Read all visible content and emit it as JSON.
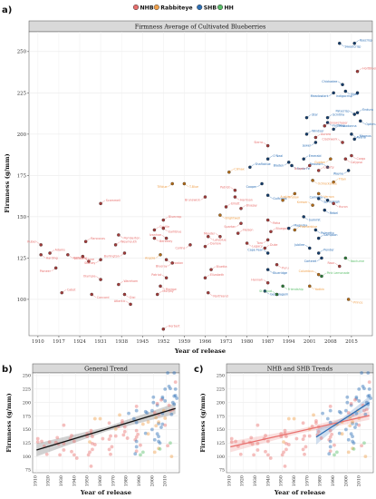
{
  "legend": {
    "entries": [
      {
        "name": "NHB",
        "color": "#e8706e"
      },
      {
        "name": "Rabbiteye",
        "color": "#f0a04b"
      },
      {
        "name": "SHB",
        "color": "#2d6fb5"
      },
      {
        "name": "HH",
        "color": "#5bbf6a"
      }
    ]
  },
  "panels": {
    "a": {
      "letter": "a)",
      "title": "Firmness Average of Cultivated Blueberries",
      "xlabel": "Year of release",
      "ylabel": "Firmness (g/mm)"
    },
    "b": {
      "letter": "b)",
      "title": "General Trend",
      "xlabel": "Year of release",
      "ylabel": "Firmness (g/mm)"
    },
    "c": {
      "letter": "c)",
      "title": "NHB and SHB Trends",
      "xlabel": "Year of release",
      "ylabel": "Firmness (g/mm)"
    }
  },
  "chart_data": [
    {
      "type": "scatter",
      "title": "Firmness Average of Cultivated Blueberries",
      "xlabel": "Year of release",
      "ylabel": "Firmness (g/mm)",
      "xlim": [
        1907,
        2022
      ],
      "ylim": [
        78,
        262
      ],
      "xticks": [
        1910,
        1917,
        1924,
        1931,
        1938,
        1945,
        1952,
        1959,
        1966,
        1973,
        1980,
        1987,
        1994,
        2001,
        2008,
        2015
      ],
      "yticks": [
        100,
        125,
        150,
        175,
        200,
        225,
        250
      ],
      "legend_position": "top",
      "points": [
        {
          "label": "Rubel",
          "x": 1911,
          "y": 133,
          "group": "NHB"
        },
        {
          "label": "Harding",
          "x": 1911,
          "y": 127,
          "group": "NHB"
        },
        {
          "label": "Adams",
          "x": 1914,
          "y": 128,
          "group": "NHB"
        },
        {
          "label": "Pioneer",
          "x": 1916,
          "y": 119,
          "group": "NHB"
        },
        {
          "label": "Cabot",
          "x": 1918,
          "y": 104,
          "group": "NHB"
        },
        {
          "label": "Katharine",
          "x": 1920,
          "y": 127,
          "group": "NHB"
        },
        {
          "label": "Jersey",
          "x": 1927,
          "y": 123,
          "group": "NHB"
        },
        {
          "label": "June",
          "x": 1925,
          "y": 126,
          "group": "NHB"
        },
        {
          "label": "Rancocas",
          "x": 1926,
          "y": 135,
          "group": "NHB"
        },
        {
          "label": "Stanley",
          "x": 1931,
          "y": 124,
          "group": "NHB"
        },
        {
          "label": "Scammell",
          "x": 1931,
          "y": 158,
          "group": "NHB"
        },
        {
          "label": "Concord",
          "x": 1928,
          "y": 103,
          "group": "NHB"
        },
        {
          "label": "Olympia",
          "x": 1931,
          "y": 112,
          "group": "NHB"
        },
        {
          "label": "Pemberton",
          "x": 1937,
          "y": 139,
          "group": "NHB"
        },
        {
          "label": "Weymouth",
          "x": 1936,
          "y": 133,
          "group": "NHB"
        },
        {
          "label": "Burlington",
          "x": 1939,
          "y": 128,
          "group": "NHB"
        },
        {
          "label": "Wareham",
          "x": 1937,
          "y": 109,
          "group": "NHB"
        },
        {
          "label": "Dixi",
          "x": 1939,
          "y": 103,
          "group": "NHB"
        },
        {
          "label": "Atlantic",
          "x": 1941,
          "y": 97,
          "group": "NHB"
        },
        {
          "label": "Berkeley",
          "x": 1949,
          "y": 137,
          "group": "NHB"
        },
        {
          "label": "Coville",
          "x": 1949,
          "y": 142,
          "group": "NHB"
        },
        {
          "label": "Angola",
          "x": 1951,
          "y": 127,
          "group": "Rabbiteye"
        },
        {
          "label": "Bluecrop",
          "x": 1952,
          "y": 148,
          "group": "NHB"
        },
        {
          "label": "Earliblue",
          "x": 1952,
          "y": 143,
          "group": "NHB"
        },
        {
          "label": "Ivanhoe",
          "x": 1953,
          "y": 137,
          "group": "NHB"
        },
        {
          "label": "Croatan",
          "x": 1953,
          "y": 124,
          "group": "NHB"
        },
        {
          "label": "Herbert",
          "x": 1952,
          "y": 82,
          "group": "NHB"
        },
        {
          "label": "Blueray",
          "x": 1955,
          "y": 122,
          "group": "NHB"
        },
        {
          "label": "Murphy",
          "x": 1950,
          "y": 103,
          "group": "NHB"
        },
        {
          "label": "Morrow",
          "x": 1951,
          "y": 108,
          "group": "NHB"
        },
        {
          "label": "Patriot",
          "x": 1953,
          "y": 113,
          "group": "NHB"
        },
        {
          "label": "T-Blue",
          "x": 1959,
          "y": 170,
          "group": "Rabbiteye"
        },
        {
          "label": "Bluetta",
          "x": 1968,
          "y": 118,
          "group": "NHB"
        },
        {
          "label": "Collins",
          "x": 1961,
          "y": 133,
          "group": "NHB"
        },
        {
          "label": "Elizabeth",
          "x": 1966,
          "y": 113,
          "group": "NHB"
        },
        {
          "label": "Northland",
          "x": 1967,
          "y": 104,
          "group": "NHB"
        },
        {
          "label": "Meader",
          "x": 1971,
          "y": 138,
          "group": "NHB"
        },
        {
          "label": "Lateblue",
          "x": 1967,
          "y": 138,
          "group": "NHB"
        },
        {
          "label": "Darrow",
          "x": 1966,
          "y": 132,
          "group": "NHB"
        },
        {
          "label": "Brunswick",
          "x": 1966,
          "y": 162,
          "group": "NHB"
        },
        {
          "label": "Elliott",
          "x": 1973,
          "y": 156,
          "group": "NHB"
        },
        {
          "label": "Brightwell",
          "x": 1971,
          "y": 151,
          "group": "Rabbiteye"
        },
        {
          "label": "Patriot",
          "x": 1976,
          "y": 166,
          "group": "NHB"
        },
        {
          "label": "Harrison",
          "x": 1976,
          "y": 162,
          "group": "NHB"
        },
        {
          "label": "Bluejay",
          "x": 1978,
          "y": 155,
          "group": "NHB"
        },
        {
          "label": "Spartan",
          "x": 1978,
          "y": 146,
          "group": "NHB"
        },
        {
          "label": "Nelson",
          "x": 1977,
          "y": 140,
          "group": "NHB"
        },
        {
          "label": "Legacy",
          "x": 1980,
          "y": 134,
          "group": "NHB"
        },
        {
          "label": "Sierra",
          "x": 1987,
          "y": 193,
          "group": "NHB"
        },
        {
          "label": "Reka",
          "x": 1987,
          "y": 148,
          "group": "NHB"
        },
        {
          "label": "Bluegold",
          "x": 1988,
          "y": 141,
          "group": "NHB"
        },
        {
          "label": "Toro",
          "x": 1987,
          "y": 136,
          "group": "NHB"
        },
        {
          "label": "Duke",
          "x": 1986,
          "y": 131,
          "group": "NHB"
        },
        {
          "label": "Puru",
          "x": 1990,
          "y": 121,
          "group": "NHB"
        },
        {
          "label": "Hannah",
          "x": 1987,
          "y": 110,
          "group": "NHB"
        },
        {
          "label": "Georgiagem",
          "x": 1986,
          "y": 105,
          "group": "SHB"
        },
        {
          "label": "Shaflaklue",
          "x": 1981,
          "y": 180,
          "group": "SHB"
        },
        {
          "label": "Cooper",
          "x": 1985,
          "y": 170,
          "group": "SHB"
        },
        {
          "label": "O'Neal",
          "x": 1987,
          "y": 185,
          "group": "SHB"
        },
        {
          "label": "Blueridge",
          "x": 1987,
          "y": 118,
          "group": "SHB"
        },
        {
          "label": "Cape Fear",
          "x": 1987,
          "y": 128,
          "group": "SHB"
        },
        {
          "label": "Gulfcoast",
          "x": 1987,
          "y": 163,
          "group": "SHB"
        },
        {
          "label": "Magnolia",
          "x": 1994,
          "y": 143,
          "group": "SHB"
        },
        {
          "label": "Bladen",
          "x": 1994,
          "y": 183,
          "group": "SHB"
        },
        {
          "label": "Emerald",
          "x": 1999,
          "y": 185,
          "group": "SHB"
        },
        {
          "label": "Santa Fe",
          "x": 1995,
          "y": 181,
          "group": "SHB"
        },
        {
          "label": "Jubilee",
          "x": 2001,
          "y": 131,
          "group": "SHB"
        },
        {
          "label": "Summit",
          "x": 1999,
          "y": 150,
          "group": "SHB"
        },
        {
          "label": "Star",
          "x": 2000,
          "y": 210,
          "group": "SHB"
        },
        {
          "label": "Jewel",
          "x": 2003,
          "y": 195,
          "group": "SHB"
        },
        {
          "label": "Windsor",
          "x": 2000,
          "y": 200,
          "group": "SHB"
        },
        {
          "label": "Springhigh",
          "x": 2004,
          "y": 161,
          "group": "SHB"
        },
        {
          "label": "Camellia",
          "x": 2007,
          "y": 160,
          "group": "SHB"
        },
        {
          "label": "Palmetto",
          "x": 2003,
          "y": 142,
          "group": "SHB"
        },
        {
          "label": "Sampson",
          "x": 2004,
          "y": 137,
          "group": "SHB"
        },
        {
          "label": "Carteret",
          "x": 2005,
          "y": 125,
          "group": "SHB"
        },
        {
          "label": "Pender",
          "x": 2004,
          "y": 128,
          "group": "SHB"
        },
        {
          "label": "Rebel",
          "x": 2006,
          "y": 154,
          "group": "SHB"
        },
        {
          "label": "Beaufort",
          "x": 2007,
          "y": 180,
          "group": "SHB"
        },
        {
          "label": "Farthing",
          "x": 2007,
          "y": 207,
          "group": "SHB"
        },
        {
          "label": "Scintilla",
          "x": 2007,
          "y": 210,
          "group": "SHB"
        },
        {
          "label": "Meadowlark",
          "x": 2009,
          "y": 225,
          "group": "SHB"
        },
        {
          "label": "Primadonna",
          "x": 2009,
          "y": 203,
          "group": "SHB"
        },
        {
          "label": "Sweetcrisp",
          "x": 2011,
          "y": 255,
          "group": "SHB"
        },
        {
          "label": "Chickadee",
          "x": 2012,
          "y": 230,
          "group": "SHB"
        },
        {
          "label": "Vireo",
          "x": 2013,
          "y": 226,
          "group": "SHB"
        },
        {
          "label": "Keecrisp",
          "x": 2016,
          "y": 255,
          "group": "SHB"
        },
        {
          "label": "Indigocrisp",
          "x": 2017,
          "y": 225,
          "group": "SHB"
        },
        {
          "label": "Endura",
          "x": 2017,
          "y": 213,
          "group": "SHB"
        },
        {
          "label": "Optimus",
          "x": 2018,
          "y": 208,
          "group": "SHB"
        },
        {
          "label": "Patecrisp",
          "x": 2016,
          "y": 212,
          "group": "SHB"
        },
        {
          "label": "Avanti",
          "x": 2015,
          "y": 200,
          "group": "SHB"
        },
        {
          "label": "Magnus",
          "x": 2016,
          "y": 197,
          "group": "SHB"
        },
        {
          "label": "Wayne",
          "x": 2014,
          "y": 178,
          "group": "SHB"
        },
        {
          "label": "HortBluePetite",
          "x": 2017,
          "y": 238,
          "group": "NHB"
        },
        {
          "label": "Cargo",
          "x": 2015,
          "y": 187,
          "group": "NHB"
        },
        {
          "label": "Clockwork",
          "x": 2012,
          "y": 195,
          "group": "NHB"
        },
        {
          "label": "Calypso",
          "x": 2013,
          "y": 185,
          "group": "NHB"
        },
        {
          "label": "Aurora",
          "x": 2003,
          "y": 198,
          "group": "NHB"
        },
        {
          "label": "Draper",
          "x": 2001,
          "y": 181,
          "group": "NHB"
        },
        {
          "label": "Liberty",
          "x": 2004,
          "y": 178,
          "group": "NHB"
        },
        {
          "label": "Huron",
          "x": 2009,
          "y": 158,
          "group": "NHB"
        },
        {
          "label": "Razz",
          "x": 2011,
          "y": 120,
          "group": "NHB"
        },
        {
          "label": "Nocturne",
          "x": 2013,
          "y": 125,
          "group": "HH"
        },
        {
          "label": "Snowchaser",
          "x": 2006,
          "y": 205,
          "group": "NHB"
        },
        {
          "label": "Gupton",
          "x": 2008,
          "y": 185,
          "group": "Rabbiteye"
        },
        {
          "label": "Titan",
          "x": 2009,
          "y": 171,
          "group": "Rabbiteye"
        },
        {
          "label": "Vernon",
          "x": 2004,
          "y": 164,
          "group": "Rabbiteye"
        },
        {
          "label": "Krewer",
          "x": 2002,
          "y": 157,
          "group": "Rabbiteye"
        },
        {
          "label": "Ochlockonee",
          "x": 2002,
          "y": 172,
          "group": "Rabbiteye"
        },
        {
          "label": "Onslow",
          "x": 1992,
          "y": 160,
          "group": "Rabbiteye"
        },
        {
          "label": "Austin",
          "x": 1996,
          "y": 164,
          "group": "Rabbiteye"
        },
        {
          "label": "Powderblue",
          "x": 1996,
          "y": 142,
          "group": "Rabbiteye"
        },
        {
          "label": "Yadkin",
          "x": 2001,
          "y": 108,
          "group": "Rabbiteye"
        },
        {
          "label": "Columbus",
          "x": 2004,
          "y": 115,
          "group": "Rabbiteye"
        },
        {
          "label": "Prince",
          "x": 2014,
          "y": 100,
          "group": "Rabbiteye"
        },
        {
          "label": "Climax",
          "x": 1974,
          "y": 177,
          "group": "Rabbiteye"
        },
        {
          "label": "Tifblue",
          "x": 1955,
          "y": 170,
          "group": "Rabbiteye"
        },
        {
          "label": "Pink Lemonade",
          "x": 2005,
          "y": 114,
          "group": "HH"
        },
        {
          "label": "Friendship",
          "x": 1992,
          "y": 108,
          "group": "HH"
        },
        {
          "label": "St Cloud",
          "x": 1990,
          "y": 103,
          "group": "HH"
        }
      ]
    },
    {
      "type": "scatter",
      "title": "General Trend",
      "xlabel": "Year of release",
      "ylabel": "Firmness (g/mm)",
      "xlim": [
        1907,
        2020
      ],
      "ylim": [
        70,
        255
      ],
      "xticks": [
        1910,
        1920,
        1930,
        1940,
        1950,
        1960,
        1970,
        1980,
        1990,
        2000,
        2010
      ],
      "yticks": [
        75,
        100,
        125,
        150,
        175,
        200,
        225,
        250
      ],
      "fit": {
        "x": [
          1910,
          2017
        ],
        "y": [
          112,
          189
        ]
      }
    },
    {
      "type": "scatter",
      "title": "NHB and SHB Trends",
      "xlabel": "Year of release",
      "ylabel": "Firmness (g/mm)",
      "xlim": [
        1907,
        2020
      ],
      "ylim": [
        70,
        255
      ],
      "xticks": [
        1910,
        1920,
        1930,
        1940,
        1950,
        1960,
        1970,
        1980,
        1990,
        2000,
        2010
      ],
      "yticks": [
        75,
        100,
        125,
        150,
        175,
        200,
        225,
        250
      ],
      "series": [
        {
          "name": "NHB",
          "fit": {
            "x": [
              1910,
              2017
            ],
            "y": [
              118,
              176
            ]
          }
        },
        {
          "name": "SHB",
          "fit": {
            "x": [
              1976,
              2017
            ],
            "y": [
              136,
              200
            ]
          }
        }
      ]
    }
  ]
}
